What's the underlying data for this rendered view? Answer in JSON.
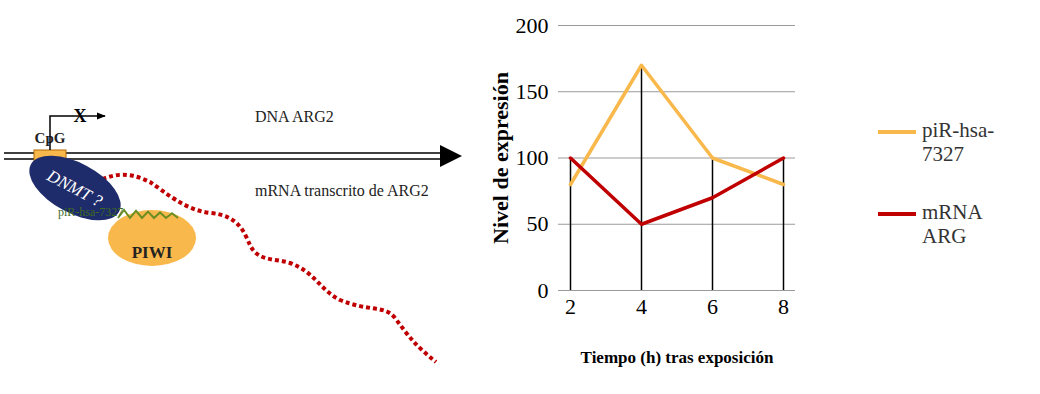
{
  "chart_data": {
    "type": "line",
    "x_label": "Tiempo (h) tras exposición",
    "y_label": "Nivel de expresión",
    "categories": [
      2,
      4,
      6,
      8
    ],
    "series": [
      {
        "name": "piR-hsa-7327",
        "color": "#F9B84B",
        "values": [
          80,
          170,
          100,
          80
        ]
      },
      {
        "name": "mRNA ARG",
        "color": "#C00000",
        "values": [
          100,
          50,
          70,
          100
        ]
      }
    ],
    "ylim": [
      0,
      200
    ],
    "yticks": [
      0,
      50,
      100,
      150,
      200
    ],
    "grid": true,
    "legend": "right"
  },
  "diagram": {
    "dna_label": "DNA ARG2",
    "cpg_label": "CpG",
    "promoter_mark": "X",
    "enzyme_label": "DNMT ?",
    "protein_label": "PIWI",
    "pirna_label": "piR-hsa-7327",
    "mrna_label": "mRNA transcrito de ARG2"
  }
}
